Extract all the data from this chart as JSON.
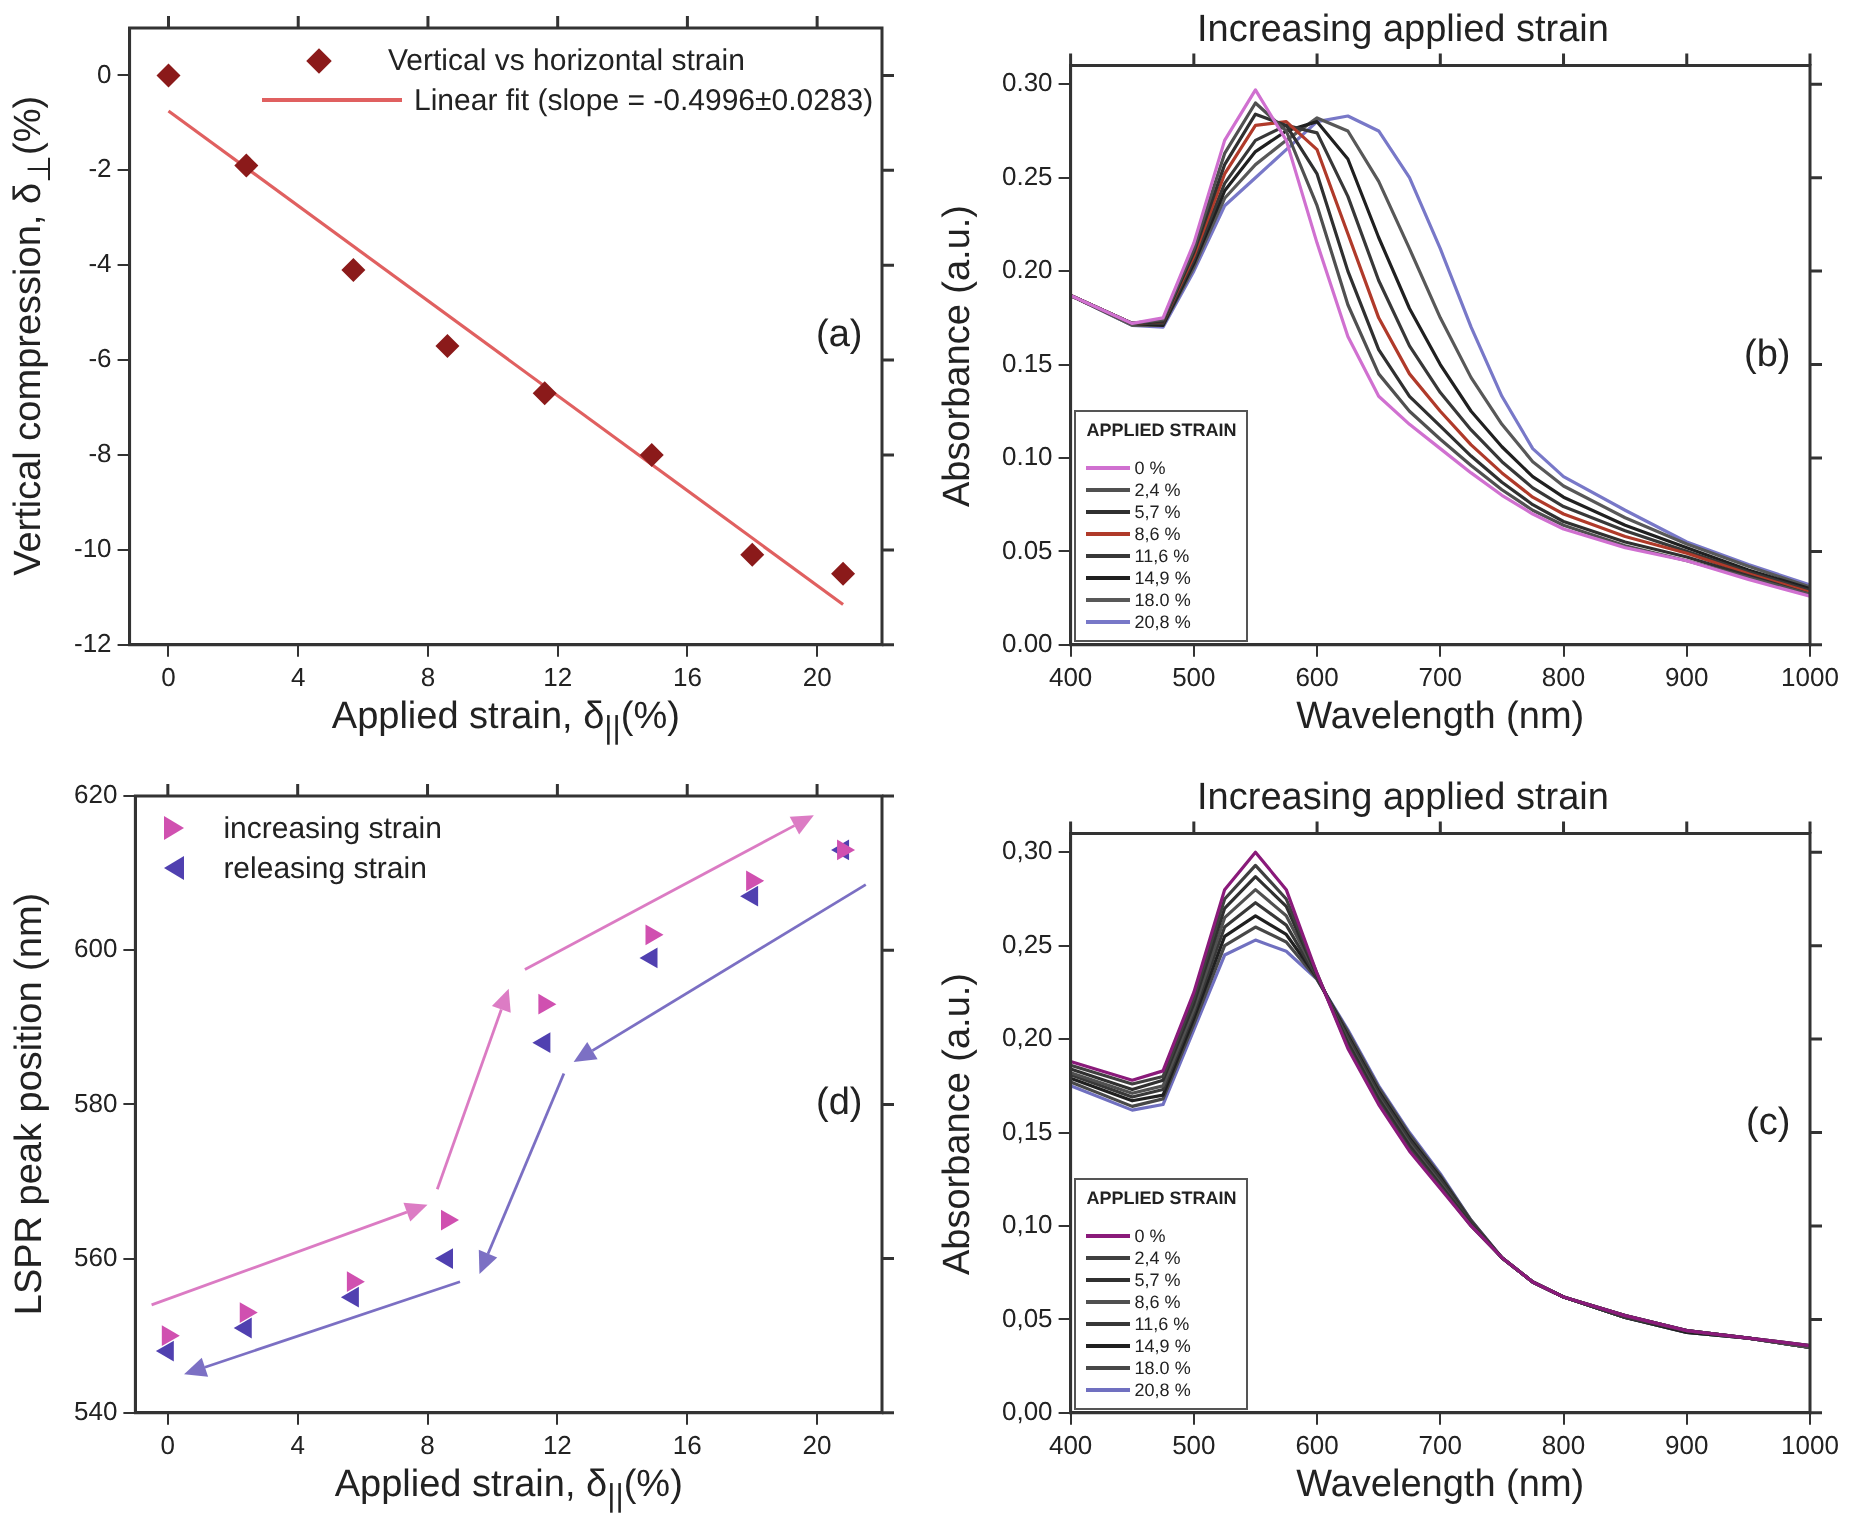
{
  "chart_data": [
    {
      "type": "scatter",
      "xlabel": "Applied strain, δ$_{||}$(%)",
      "ylabel": "Vertical compression, δ$_{⊥}$(%)",
      "xlim": [
        -1.2,
        22
      ],
      "xticks": [
        0,
        4,
        8,
        12,
        16,
        20
      ],
      "ylim": [
        -12,
        1
      ],
      "yticks": [
        -12,
        -10,
        -8,
        -6,
        -4,
        -2,
        0
      ],
      "grid": false,
      "legend": "top right",
      "annotations": [
        "(a)"
      ],
      "series": [
        {
          "name": "Vertical vs horizontal strain",
          "color": "#8b1a1a",
          "marker": "diamond",
          "x": [
            0,
            2.4,
            5.7,
            8.6,
            11.6,
            14.9,
            18.0,
            20.8
          ],
          "values": [
            0,
            -1.9,
            -4.1,
            -5.7,
            -6.7,
            -8.0,
            -10.1,
            -10.5
          ]
        },
        {
          "type": "line",
          "name": "Linear fit (slope = -0.4996±0.0283)",
          "color": "#e06060",
          "marker": "none",
          "x": [
            0,
            20.8
          ],
          "values": [
            -0.75,
            -11.15
          ]
        }
      ]
    },
    {
      "type": "line",
      "title": "Increasing applied strain",
      "xlabel": "Wavelength (nm)",
      "ylabel": "Absorbance (a.u.)",
      "xlim": [
        400,
        1000
      ],
      "xticks": [
        400,
        500,
        600,
        700,
        800,
        900,
        1000
      ],
      "ylim": [
        0,
        0.31
      ],
      "yticks": [
        {
          "value": 0,
          "label": "0.00"
        },
        {
          "value": 0.05,
          "label": "0.05"
        },
        {
          "value": 0.1,
          "label": "0.10"
        },
        {
          "value": 0.15,
          "label": "0.15"
        },
        {
          "value": 0.2,
          "label": "0.20"
        },
        {
          "value": 0.25,
          "label": "0.25"
        },
        {
          "value": 0.3,
          "label": "0.30"
        }
      ],
      "grid": false,
      "legend": "bottom left",
      "legend_title": "APPLIED STRAIN",
      "marker": "none",
      "annotations": [
        "(b)"
      ],
      "x": [
        400,
        450,
        475,
        500,
        525,
        550,
        575,
        600,
        625,
        650,
        675,
        700,
        725,
        750,
        775,
        800,
        850,
        900,
        950,
        1000
      ],
      "series": [
        {
          "name": "0 %",
          "color": "#d070d0",
          "values": [
            0.187,
            0.172,
            0.175,
            0.215,
            0.27,
            0.297,
            0.27,
            0.215,
            0.165,
            0.133,
            0.118,
            0.105,
            0.092,
            0.08,
            0.07,
            0.062,
            0.052,
            0.045,
            0.035,
            0.026
          ]
        },
        {
          "name": "2,4 %",
          "color": "#505050",
          "values": [
            0.187,
            0.172,
            0.174,
            0.212,
            0.263,
            0.29,
            0.275,
            0.235,
            0.182,
            0.145,
            0.125,
            0.11,
            0.096,
            0.083,
            0.072,
            0.064,
            0.053,
            0.045,
            0.036,
            0.027
          ]
        },
        {
          "name": "5,7 %",
          "color": "#303030",
          "values": [
            0.187,
            0.172,
            0.173,
            0.21,
            0.257,
            0.284,
            0.278,
            0.252,
            0.2,
            0.158,
            0.133,
            0.117,
            0.101,
            0.087,
            0.075,
            0.066,
            0.055,
            0.047,
            0.037,
            0.027
          ]
        },
        {
          "name": "8,6 %",
          "color": "#b03a2a",
          "values": [
            0.187,
            0.172,
            0.173,
            0.208,
            0.252,
            0.278,
            0.28,
            0.265,
            0.22,
            0.175,
            0.145,
            0.125,
            0.107,
            0.092,
            0.079,
            0.07,
            0.058,
            0.049,
            0.038,
            0.028
          ]
        },
        {
          "name": "11,6 %",
          "color": "#383838",
          "values": [
            0.187,
            0.172,
            0.172,
            0.206,
            0.247,
            0.27,
            0.278,
            0.274,
            0.24,
            0.195,
            0.16,
            0.135,
            0.115,
            0.098,
            0.084,
            0.074,
            0.061,
            0.05,
            0.039,
            0.029
          ]
        },
        {
          "name": "14,9 %",
          "color": "#202020",
          "values": [
            0.187,
            0.172,
            0.171,
            0.204,
            0.243,
            0.264,
            0.275,
            0.28,
            0.26,
            0.218,
            0.18,
            0.15,
            0.125,
            0.106,
            0.09,
            0.079,
            0.064,
            0.052,
            0.04,
            0.03
          ]
        },
        {
          "name": "18.0 %",
          "color": "#585858",
          "values": [
            0.187,
            0.171,
            0.171,
            0.202,
            0.239,
            0.257,
            0.27,
            0.282,
            0.275,
            0.248,
            0.212,
            0.175,
            0.143,
            0.118,
            0.098,
            0.085,
            0.068,
            0.054,
            0.042,
            0.031
          ]
        },
        {
          "name": "20,8 %",
          "color": "#7878c8",
          "values": [
            0.187,
            0.171,
            0.17,
            0.2,
            0.235,
            0.25,
            0.265,
            0.28,
            0.283,
            0.275,
            0.25,
            0.212,
            0.17,
            0.133,
            0.105,
            0.09,
            0.072,
            0.055,
            0.043,
            0.032
          ]
        }
      ]
    },
    {
      "type": "scatter",
      "xlabel": "Applied strain, δ$_{||}$(%)",
      "ylabel": "LSPR peak position (nm)",
      "xlim": [
        -1,
        22
      ],
      "xticks": [
        0,
        4,
        8,
        12,
        16,
        20
      ],
      "ylim": [
        540,
        620
      ],
      "yticks": [
        540,
        560,
        580,
        600,
        620
      ],
      "grid": false,
      "legend": "top left",
      "annotations": [
        "(d)"
      ],
      "series": [
        {
          "name": "increasing strain",
          "color": "#d050b0",
          "marker": "triangle-right",
          "x": [
            0,
            2.4,
            5.7,
            8.6,
            11.6,
            14.9,
            18.0,
            20.8
          ],
          "values": [
            550,
            553,
            557,
            565,
            593,
            602,
            609,
            613
          ]
        },
        {
          "name": "releasing strain",
          "color": "#5040b0",
          "marker": "triangle-left",
          "x": [
            0,
            2.4,
            5.7,
            8.6,
            11.6,
            14.9,
            18.0,
            20.8
          ],
          "values": [
            548,
            551,
            555,
            560,
            588,
            599,
            607,
            613
          ]
        }
      ]
    },
    {
      "type": "line",
      "title": "Increasing applied strain",
      "xlabel": "Wavelength (nm)",
      "ylabel": "Absorbance (a.u.)",
      "xlim": [
        400,
        1000
      ],
      "xticks": [
        400,
        500,
        600,
        700,
        800,
        900,
        1000
      ],
      "ylim": [
        0,
        0.31
      ],
      "yticks": [
        {
          "value": 0,
          "label": "0,00"
        },
        {
          "value": 0.05,
          "label": "0,05"
        },
        {
          "value": 0.1,
          "label": "0,10"
        },
        {
          "value": 0.15,
          "label": "0,15"
        },
        {
          "value": 0.2,
          "label": "0,20"
        },
        {
          "value": 0.25,
          "label": "0,25"
        },
        {
          "value": 0.3,
          "label": "0,30"
        }
      ],
      "grid": false,
      "legend": "bottom left",
      "legend_title": "APPLIED STRAIN",
      "marker": "none",
      "annotations": [
        "(c)"
      ],
      "x": [
        400,
        450,
        475,
        500,
        525,
        550,
        575,
        600,
        625,
        650,
        675,
        700,
        725,
        750,
        775,
        800,
        850,
        900,
        950,
        1000
      ],
      "series": [
        {
          "name": "0 %",
          "color": "#8a1a7a",
          "values": [
            0.188,
            0.178,
            0.183,
            0.225,
            0.28,
            0.3,
            0.28,
            0.235,
            0.195,
            0.165,
            0.14,
            0.12,
            0.1,
            0.083,
            0.07,
            0.062,
            0.052,
            0.044,
            0.04,
            0.036
          ]
        },
        {
          "name": "2,4 %",
          "color": "#404040",
          "values": [
            0.186,
            0.176,
            0.18,
            0.222,
            0.275,
            0.293,
            0.275,
            0.235,
            0.196,
            0.166,
            0.141,
            0.121,
            0.1,
            0.083,
            0.07,
            0.062,
            0.052,
            0.044,
            0.04,
            0.036
          ]
        },
        {
          "name": "5,7 %",
          "color": "#303030",
          "values": [
            0.184,
            0.173,
            0.178,
            0.219,
            0.27,
            0.287,
            0.271,
            0.234,
            0.198,
            0.168,
            0.143,
            0.122,
            0.101,
            0.083,
            0.07,
            0.062,
            0.052,
            0.044,
            0.04,
            0.036
          ]
        },
        {
          "name": "8,6 %",
          "color": "#505050",
          "values": [
            0.182,
            0.171,
            0.175,
            0.216,
            0.265,
            0.28,
            0.266,
            0.234,
            0.199,
            0.169,
            0.144,
            0.123,
            0.101,
            0.083,
            0.07,
            0.062,
            0.052,
            0.044,
            0.04,
            0.035
          ]
        },
        {
          "name": "11,6 %",
          "color": "#383838",
          "values": [
            0.181,
            0.169,
            0.173,
            0.214,
            0.26,
            0.273,
            0.261,
            0.233,
            0.201,
            0.171,
            0.146,
            0.125,
            0.102,
            0.083,
            0.07,
            0.062,
            0.051,
            0.044,
            0.04,
            0.035
          ]
        },
        {
          "name": "14,9 %",
          "color": "#202020",
          "values": [
            0.179,
            0.167,
            0.17,
            0.211,
            0.255,
            0.266,
            0.256,
            0.233,
            0.202,
            0.172,
            0.147,
            0.126,
            0.102,
            0.083,
            0.07,
            0.062,
            0.051,
            0.043,
            0.04,
            0.035
          ]
        },
        {
          "name": "18.0 %",
          "color": "#484848",
          "values": [
            0.177,
            0.164,
            0.168,
            0.208,
            0.25,
            0.26,
            0.252,
            0.232,
            0.204,
            0.174,
            0.149,
            0.127,
            0.103,
            0.083,
            0.07,
            0.062,
            0.051,
            0.043,
            0.04,
            0.035
          ]
        },
        {
          "name": "20,8 %",
          "color": "#7070c0",
          "values": [
            0.175,
            0.162,
            0.165,
            0.205,
            0.245,
            0.253,
            0.247,
            0.232,
            0.205,
            0.175,
            0.15,
            0.128,
            0.103,
            0.083,
            0.07,
            0.062,
            0.051,
            0.043,
            0.04,
            0.035
          ]
        }
      ]
    }
  ]
}
